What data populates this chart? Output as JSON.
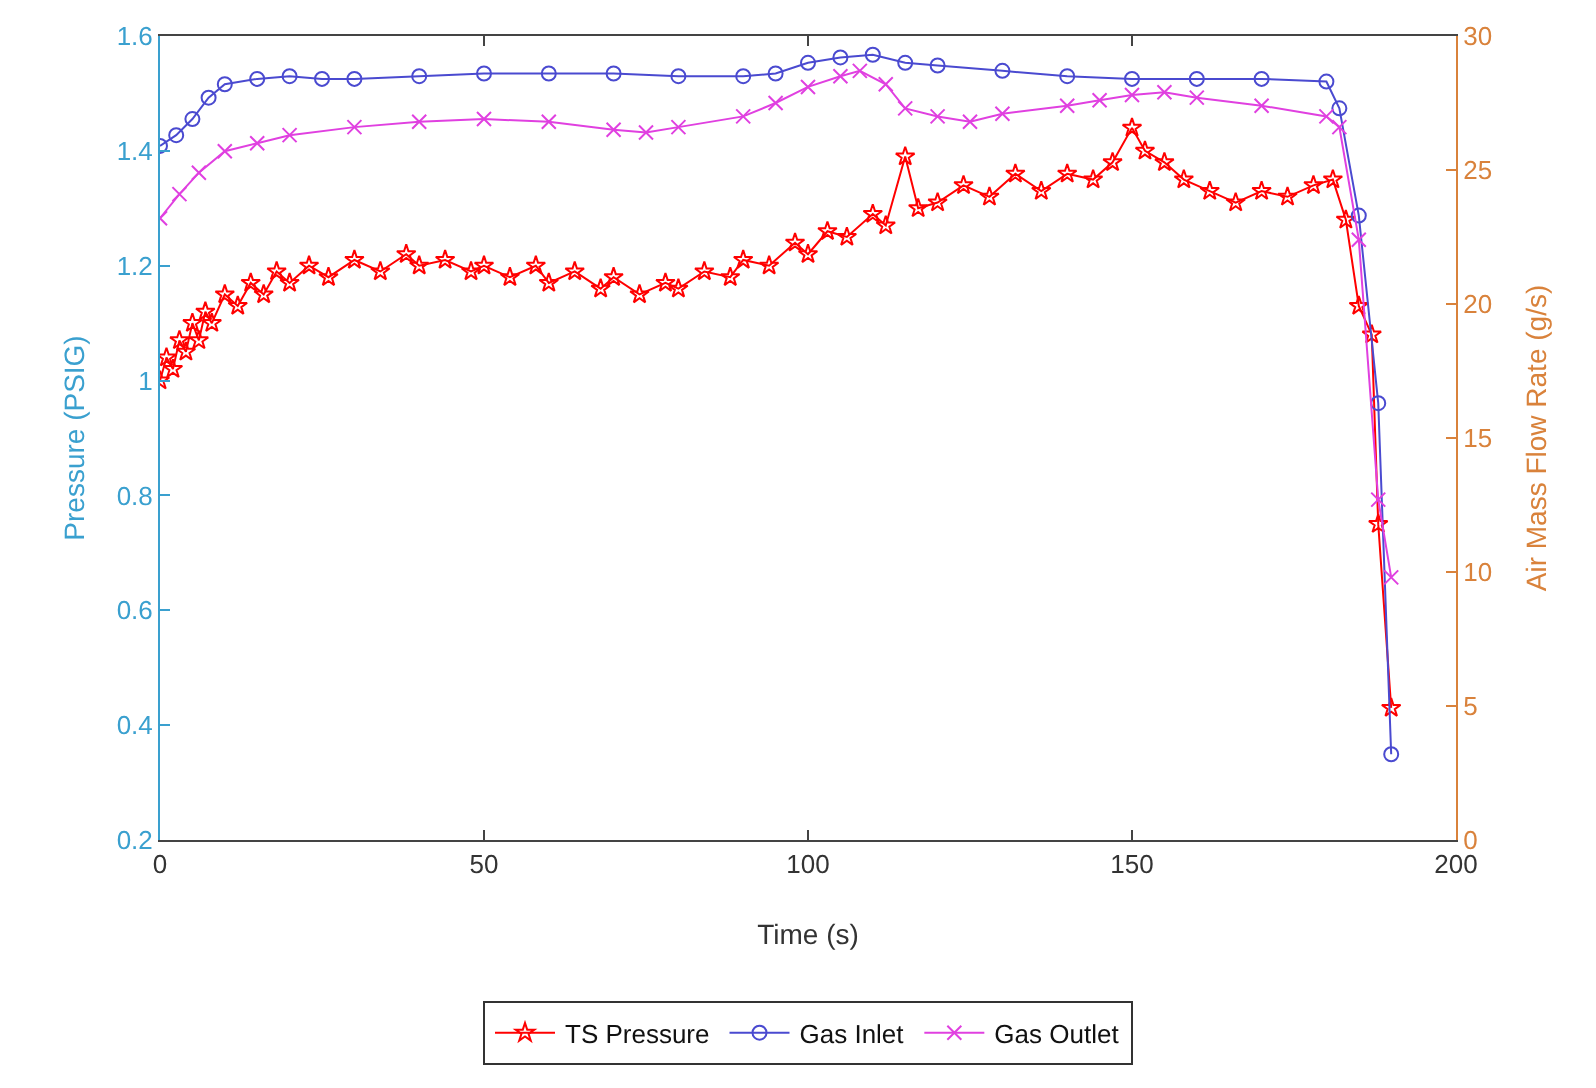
{
  "chart_data": {
    "type": "line",
    "xlabel": "Time (s)",
    "ylabel": "Pressure (PSIG)",
    "y2label": "Air Mass Flow Rate (g/s)",
    "xlim": [
      0,
      200
    ],
    "xticks": [
      0,
      50,
      100,
      150,
      200
    ],
    "ylim": [
      0.2,
      1.6
    ],
    "yticks": [
      0.2,
      0.4,
      0.6,
      0.8,
      1,
      1.2,
      1.4,
      1.6
    ],
    "y2lim": [
      0,
      30
    ],
    "y2ticks": [
      0,
      5,
      10,
      15,
      20,
      25,
      30
    ],
    "grid": false,
    "legend": "bottom",
    "line_style": "solid",
    "series": [
      {
        "name": "TS Pressure",
        "color": "#ff0000",
        "marker": "star",
        "x": [
          0,
          1,
          2,
          3,
          4,
          5,
          6,
          7,
          8,
          10,
          12,
          14,
          16,
          18,
          20,
          23,
          26,
          30,
          34,
          38,
          40,
          44,
          48,
          50,
          54,
          58,
          60,
          64,
          68,
          70,
          74,
          78,
          80,
          84,
          88,
          90,
          94,
          98,
          100,
          103,
          106,
          110,
          112,
          115,
          117,
          120,
          124,
          128,
          132,
          136,
          140,
          144,
          147,
          150,
          152,
          155,
          158,
          162,
          166,
          170,
          174,
          178,
          181,
          183,
          185,
          187,
          188,
          190
        ],
        "values": [
          1.0,
          1.04,
          1.02,
          1.07,
          1.05,
          1.1,
          1.07,
          1.12,
          1.1,
          1.15,
          1.13,
          1.17,
          1.15,
          1.19,
          1.17,
          1.2,
          1.18,
          1.21,
          1.19,
          1.22,
          1.2,
          1.21,
          1.19,
          1.2,
          1.18,
          1.2,
          1.17,
          1.19,
          1.16,
          1.18,
          1.15,
          1.17,
          1.16,
          1.19,
          1.18,
          1.21,
          1.2,
          1.24,
          1.22,
          1.26,
          1.25,
          1.29,
          1.27,
          1.39,
          1.3,
          1.31,
          1.34,
          1.32,
          1.36,
          1.33,
          1.36,
          1.35,
          1.38,
          1.44,
          1.4,
          1.38,
          1.35,
          1.33,
          1.31,
          1.33,
          1.32,
          1.34,
          1.35,
          1.28,
          1.13,
          1.08,
          0.75,
          0.43
        ]
      },
      {
        "name": "Gas Inlet",
        "color": "#4a4ad0",
        "marker": "circle",
        "axis": "y2",
        "x": [
          0,
          2.5,
          5,
          7.5,
          10,
          15,
          20,
          25,
          30,
          40,
          50,
          60,
          70,
          80,
          90,
          95,
          100,
          105,
          110,
          115,
          120,
          130,
          140,
          150,
          160,
          170,
          180,
          182,
          185,
          188,
          190
        ],
        "values": [
          25.9,
          26.3,
          26.9,
          27.7,
          28.2,
          28.4,
          28.5,
          28.4,
          28.4,
          28.5,
          28.6,
          28.6,
          28.6,
          28.5,
          28.5,
          28.6,
          29,
          29.2,
          29.3,
          29,
          28.9,
          28.7,
          28.5,
          28.4,
          28.4,
          28.4,
          28.3,
          27.3,
          23.3,
          16.3,
          3.2
        ]
      },
      {
        "name": "Gas Outlet",
        "color": "#e040e0",
        "marker": "cross",
        "axis": "y2",
        "x": [
          0,
          3,
          6,
          10,
          15,
          20,
          30,
          40,
          50,
          60,
          70,
          75,
          80,
          90,
          95,
          100,
          105,
          108,
          112,
          115,
          120,
          125,
          130,
          140,
          145,
          150,
          155,
          160,
          170,
          180,
          182,
          185,
          188,
          190
        ],
        "values": [
          23.2,
          24.1,
          24.9,
          25.7,
          26,
          26.3,
          26.6,
          26.8,
          26.9,
          26.8,
          26.5,
          26.4,
          26.6,
          27,
          27.5,
          28.1,
          28.5,
          28.7,
          28.2,
          27.3,
          27,
          26.8,
          27.1,
          27.4,
          27.6,
          27.8,
          27.9,
          27.7,
          27.4,
          27,
          26.6,
          22.4,
          12.7,
          9.8
        ]
      }
    ]
  }
}
